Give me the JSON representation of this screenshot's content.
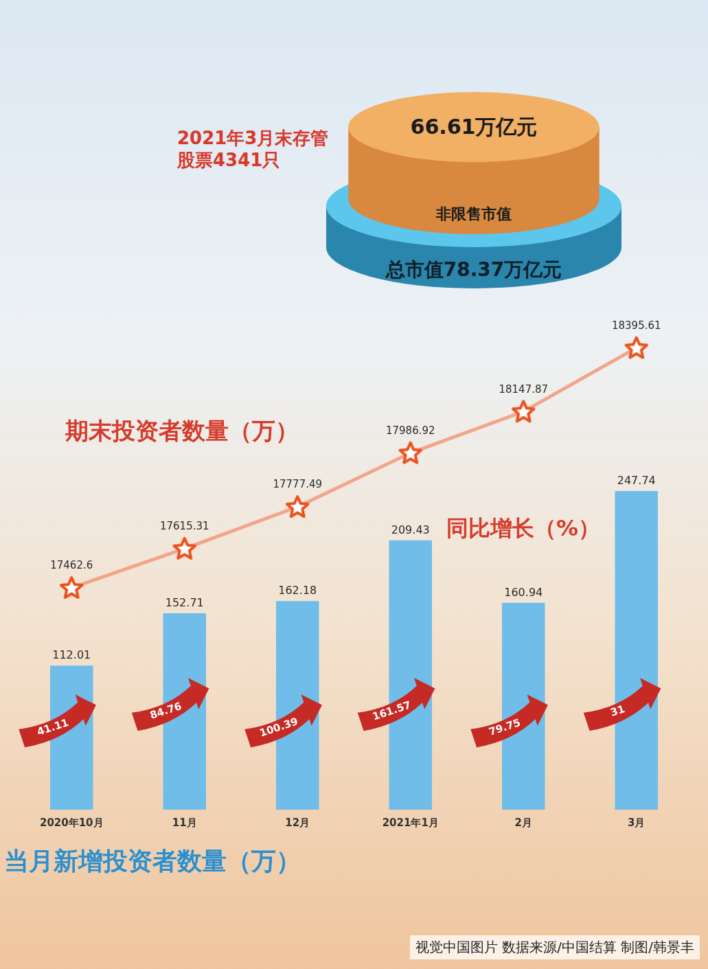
{
  "market_value": {
    "title": "2021年3月末存管股票4341只",
    "non_restricted": {
      "label": "非限售市值",
      "value": 66.61,
      "value_label": "66.61万亿元"
    },
    "total": {
      "value": 78.37,
      "value_label": "总市值78.37万亿元"
    }
  },
  "chart_data": {
    "type": "bar",
    "categories": [
      "2020年10月",
      "11月",
      "12月",
      "2021年1月",
      "2月",
      "3月"
    ],
    "series": [
      {
        "name": "当月新增投资者数量（万）",
        "type": "bar",
        "color": "#6fbde8",
        "values": [
          112.01,
          152.71,
          162.18,
          209.43,
          160.94,
          247.74
        ]
      },
      {
        "name": "期末投资者数量（万）",
        "type": "line",
        "axis": "y2",
        "color": "#f2a58a",
        "marker": "star",
        "values": [
          17462.6,
          17615.31,
          17777.49,
          17986.92,
          18147.87,
          18395.61
        ]
      },
      {
        "name": "同比增长（%）",
        "type": "arrow",
        "color": "#c62a25",
        "values": [
          41.11,
          84.76,
          100.39,
          161.57,
          79.75,
          31
        ]
      }
    ],
    "ylim": [
      0,
      400
    ],
    "yticks": [
      0,
      100,
      200,
      300,
      400
    ],
    "y2lim": [
      16600,
      18600
    ],
    "y2ticks": [
      16600,
      17100,
      17600,
      18100,
      18600
    ],
    "grid": false,
    "tick_labels": "x",
    "data_labels": true
  },
  "source": "视觉中国图片  数据来源/中国结算  制图/韩景丰"
}
